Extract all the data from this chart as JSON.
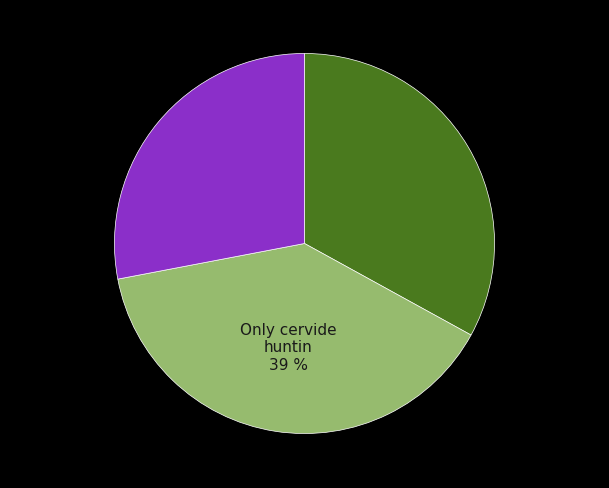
{
  "slices": [
    {
      "label": "",
      "value": 33,
      "color": "#4a7a1e"
    },
    {
      "label": "Only cervide\nhuntin\n39 %",
      "value": 39,
      "color": "#96bb6e"
    },
    {
      "label": "",
      "value": 28,
      "color": "#8b2fc9"
    }
  ],
  "background_color": "#000000",
  "label_color": "#1a1a1a",
  "label_fontsize": 11,
  "startangle": 90,
  "figsize": [
    6.09,
    4.89
  ],
  "dpi": 100
}
